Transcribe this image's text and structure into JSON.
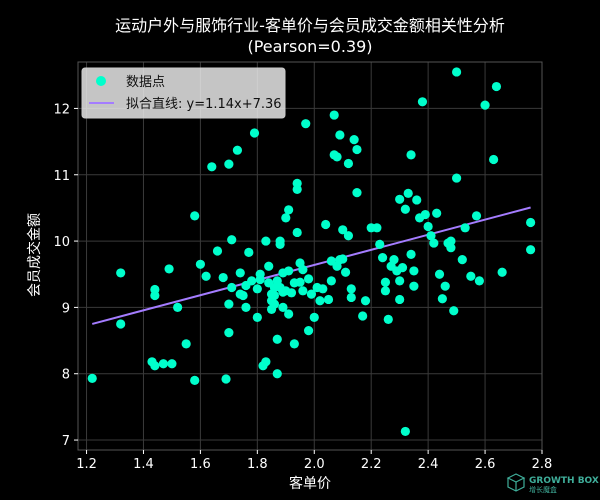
{
  "chart_data": {
    "type": "scatter",
    "title": "运动户外与服饰行业-客单价与会员成交金额相关性分析",
    "subtitle": "(Pearson=0.39)",
    "xlabel": "客单价",
    "ylabel": "会员成交金额",
    "xlim": [
      1.17,
      2.8
    ],
    "ylim": [
      6.85,
      12.7
    ],
    "xticks": [
      "1.2",
      "1.4",
      "1.6",
      "1.8",
      "2.0",
      "2.2",
      "2.4",
      "2.6",
      "2.8"
    ],
    "yticks": [
      "7",
      "8",
      "9",
      "10",
      "11",
      "12"
    ],
    "grid": true,
    "legend_position": "top-left",
    "series": [
      {
        "name": "数据点",
        "color": "#00ffcc",
        "points": [
          [
            1.22,
            7.93
          ],
          [
            1.32,
            9.52
          ],
          [
            1.32,
            8.75
          ],
          [
            1.43,
            8.18
          ],
          [
            1.44,
            9.27
          ],
          [
            1.44,
            9.18
          ],
          [
            1.44,
            8.12
          ],
          [
            1.47,
            8.15
          ],
          [
            1.49,
            9.58
          ],
          [
            1.5,
            8.15
          ],
          [
            1.52,
            9.0
          ],
          [
            1.55,
            8.45
          ],
          [
            1.58,
            10.38
          ],
          [
            1.58,
            7.9
          ],
          [
            1.6,
            9.65
          ],
          [
            1.62,
            9.47
          ],
          [
            1.64,
            11.12
          ],
          [
            1.66,
            9.85
          ],
          [
            1.68,
            9.45
          ],
          [
            1.69,
            7.92
          ],
          [
            1.7,
            11.16
          ],
          [
            1.7,
            8.62
          ],
          [
            1.7,
            9.05
          ],
          [
            1.71,
            10.02
          ],
          [
            1.71,
            9.3
          ],
          [
            1.73,
            11.37
          ],
          [
            1.74,
            9.52
          ],
          [
            1.74,
            9.2
          ],
          [
            1.75,
            9.18
          ],
          [
            1.76,
            9.33
          ],
          [
            1.76,
            9.0
          ],
          [
            1.77,
            9.83
          ],
          [
            1.78,
            9.4
          ],
          [
            1.79,
            11.63
          ],
          [
            1.8,
            9.28
          ],
          [
            1.8,
            8.85
          ],
          [
            1.81,
            9.42
          ],
          [
            1.81,
            9.5
          ],
          [
            1.82,
            8.12
          ],
          [
            1.83,
            8.18
          ],
          [
            1.83,
            10.0
          ],
          [
            1.84,
            9.62
          ],
          [
            1.84,
            9.37
          ],
          [
            1.85,
            9.2
          ],
          [
            1.85,
            9.1
          ],
          [
            1.85,
            8.97
          ],
          [
            1.86,
            9.3
          ],
          [
            1.86,
            9.05
          ],
          [
            1.86,
            9.18
          ],
          [
            1.87,
            8.0
          ],
          [
            1.87,
            8.52
          ],
          [
            1.87,
            9.4
          ],
          [
            1.88,
            9.95
          ],
          [
            1.88,
            9.3
          ],
          [
            1.88,
            10.0
          ],
          [
            1.89,
            9.52
          ],
          [
            1.89,
            9.23
          ],
          [
            1.89,
            9.0
          ],
          [
            1.9,
            10.35
          ],
          [
            1.9,
            9.25
          ],
          [
            1.91,
            10.47
          ],
          [
            1.91,
            9.55
          ],
          [
            1.91,
            8.9
          ],
          [
            1.92,
            9.22
          ],
          [
            1.93,
            8.45
          ],
          [
            1.93,
            9.37
          ],
          [
            1.94,
            10.13
          ],
          [
            1.94,
            10.78
          ],
          [
            1.94,
            10.87
          ],
          [
            1.95,
            9.67
          ],
          [
            1.95,
            9.38
          ],
          [
            1.96,
            9.57
          ],
          [
            1.96,
            9.25
          ],
          [
            1.97,
            11.77
          ],
          [
            1.98,
            8.65
          ],
          [
            1.98,
            9.43
          ],
          [
            1.99,
            9.2
          ],
          [
            2.0,
            8.85
          ],
          [
            2.01,
            9.3
          ],
          [
            2.02,
            9.1
          ],
          [
            2.03,
            9.28
          ],
          [
            2.04,
            10.25
          ],
          [
            2.05,
            9.12
          ],
          [
            2.06,
            9.4
          ],
          [
            2.06,
            9.7
          ],
          [
            2.07,
            11.3
          ],
          [
            2.07,
            11.9
          ],
          [
            2.08,
            9.62
          ],
          [
            2.08,
            11.27
          ],
          [
            2.09,
            9.72
          ],
          [
            2.09,
            11.6
          ],
          [
            2.1,
            9.73
          ],
          [
            2.1,
            10.17
          ],
          [
            2.11,
            9.53
          ],
          [
            2.12,
            11.17
          ],
          [
            2.12,
            10.08
          ],
          [
            2.13,
            9.28
          ],
          [
            2.13,
            9.15
          ],
          [
            2.14,
            11.53
          ],
          [
            2.15,
            11.38
          ],
          [
            2.15,
            10.73
          ],
          [
            2.17,
            8.87
          ],
          [
            2.18,
            9.1
          ],
          [
            2.2,
            10.2
          ],
          [
            2.22,
            10.2
          ],
          [
            2.23,
            9.95
          ],
          [
            2.24,
            9.75
          ],
          [
            2.25,
            9.38
          ],
          [
            2.25,
            9.25
          ],
          [
            2.26,
            8.82
          ],
          [
            2.27,
            9.62
          ],
          [
            2.28,
            9.72
          ],
          [
            2.29,
            9.55
          ],
          [
            2.3,
            10.63
          ],
          [
            2.3,
            9.4
          ],
          [
            2.3,
            9.12
          ],
          [
            2.31,
            9.6
          ],
          [
            2.32,
            7.13
          ],
          [
            2.32,
            10.48
          ],
          [
            2.33,
            10.72
          ],
          [
            2.34,
            11.3
          ],
          [
            2.34,
            9.8
          ],
          [
            2.35,
            9.32
          ],
          [
            2.35,
            9.55
          ],
          [
            2.36,
            10.62
          ],
          [
            2.37,
            10.35
          ],
          [
            2.38,
            12.1
          ],
          [
            2.39,
            10.4
          ],
          [
            2.4,
            10.22
          ],
          [
            2.41,
            10.08
          ],
          [
            2.42,
            9.97
          ],
          [
            2.43,
            10.42
          ],
          [
            2.44,
            9.5
          ],
          [
            2.45,
            9.13
          ],
          [
            2.46,
            9.32
          ],
          [
            2.47,
            9.97
          ],
          [
            2.48,
            10.0
          ],
          [
            2.48,
            9.9
          ],
          [
            2.49,
            8.95
          ],
          [
            2.5,
            12.55
          ],
          [
            2.5,
            10.95
          ],
          [
            2.52,
            9.72
          ],
          [
            2.53,
            10.2
          ],
          [
            2.55,
            9.47
          ],
          [
            2.57,
            10.38
          ],
          [
            2.58,
            9.4
          ],
          [
            2.6,
            12.05
          ],
          [
            2.63,
            11.23
          ],
          [
            2.64,
            12.33
          ],
          [
            2.66,
            9.53
          ],
          [
            2.76,
            10.28
          ],
          [
            2.76,
            9.87
          ]
        ]
      },
      {
        "name": "拟合直线: y=1.14x+7.36",
        "type": "line",
        "color": "#a47cff",
        "slope": 1.14,
        "intercept": 7.36,
        "x_range": [
          1.22,
          2.76
        ]
      }
    ]
  },
  "watermark": {
    "text": "GROWTH BOX",
    "sub": "增长魔盒"
  }
}
